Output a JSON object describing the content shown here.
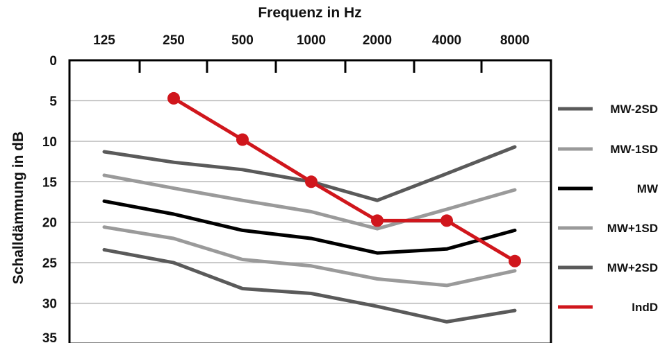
{
  "chart_data": {
    "type": "line",
    "title": "",
    "xlabel": "Frequenz in Hz",
    "ylabel": "Schalldämmung in dB",
    "categories": [
      "125",
      "250",
      "500",
      "1000",
      "2000",
      "4000",
      "8000"
    ],
    "y_ticks": [
      0,
      5,
      10,
      15,
      20,
      25,
      30,
      35
    ],
    "ylim": [
      0,
      35
    ],
    "y_inverted": true,
    "x_axis_position": "top",
    "grid": "horizontal",
    "legend_position": "right",
    "series": [
      {
        "name": "MW-2SD",
        "color": "#5a5a5a",
        "width": 5,
        "markers": false,
        "values": [
          11.3,
          12.6,
          13.5,
          15.0,
          17.3,
          14.0,
          10.7
        ]
      },
      {
        "name": "MW-1SD",
        "color": "#9a9a9a",
        "width": 5,
        "markers": false,
        "values": [
          14.2,
          15.8,
          17.3,
          18.7,
          20.8,
          18.4,
          16.0
        ]
      },
      {
        "name": "MW",
        "color": "#000000",
        "width": 5,
        "markers": false,
        "values": [
          17.4,
          19.0,
          21.0,
          22.0,
          23.8,
          23.3,
          21.0
        ]
      },
      {
        "name": "MW+1SD",
        "color": "#9a9a9a",
        "width": 5,
        "markers": false,
        "values": [
          20.6,
          22.0,
          24.6,
          25.4,
          27.0,
          27.8,
          26.0
        ]
      },
      {
        "name": "MW+2SD",
        "color": "#5a5a5a",
        "width": 5,
        "markers": false,
        "values": [
          23.4,
          25.0,
          28.2,
          28.8,
          30.4,
          32.3,
          30.9
        ]
      },
      {
        "name": "IndD",
        "color": "#d0161c",
        "width": 5,
        "markers": true,
        "values": [
          null,
          4.7,
          9.8,
          15.0,
          19.8,
          19.8,
          24.8
        ]
      }
    ]
  }
}
